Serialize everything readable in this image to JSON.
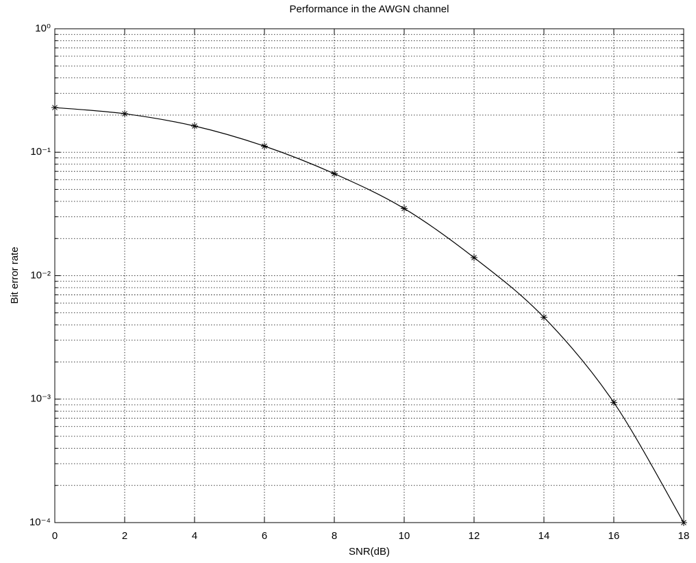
{
  "chart_data": {
    "type": "line",
    "title": "Performance in the AWGN channel",
    "x_label": "SNR(dB)",
    "y_label": "Bit error rate",
    "y_scale": "log",
    "grid": true,
    "minor_grid": true,
    "x": [
      0,
      2,
      4,
      6,
      8,
      10,
      12,
      14,
      16,
      18
    ],
    "series": [
      {
        "color": "#000000",
        "marker": "asterisk",
        "values": [
          0.23,
          0.205,
          0.163,
          0.112,
          0.067,
          0.035,
          0.014,
          0.0046,
          0.00094,
          0.0001
        ]
      }
    ],
    "xlim": [
      0,
      18
    ],
    "xticks": [
      0,
      2,
      4,
      6,
      8,
      10,
      12,
      14,
      16,
      18
    ],
    "ylim": [
      0.0001,
      1
    ],
    "yticks": [
      {
        "value": 0.0001,
        "label": "10⁻⁴"
      },
      {
        "value": 0.001,
        "label": "10⁻³"
      },
      {
        "value": 0.01,
        "label": "10⁻²"
      },
      {
        "value": 0.1,
        "label": "10⁻¹"
      },
      {
        "value": 1,
        "label": "10⁰"
      }
    ],
    "yminorticks": [
      0.0002,
      0.0003,
      0.0004,
      0.0005,
      0.0006,
      0.0007,
      0.0008,
      0.0009,
      0.002,
      0.003,
      0.004,
      0.005,
      0.006,
      0.007,
      0.008,
      0.009,
      0.02,
      0.03,
      0.04,
      0.05,
      0.06,
      0.07,
      0.08,
      0.09,
      0.2,
      0.3,
      0.4,
      0.5,
      0.6,
      0.7,
      0.8,
      0.9
    ]
  }
}
